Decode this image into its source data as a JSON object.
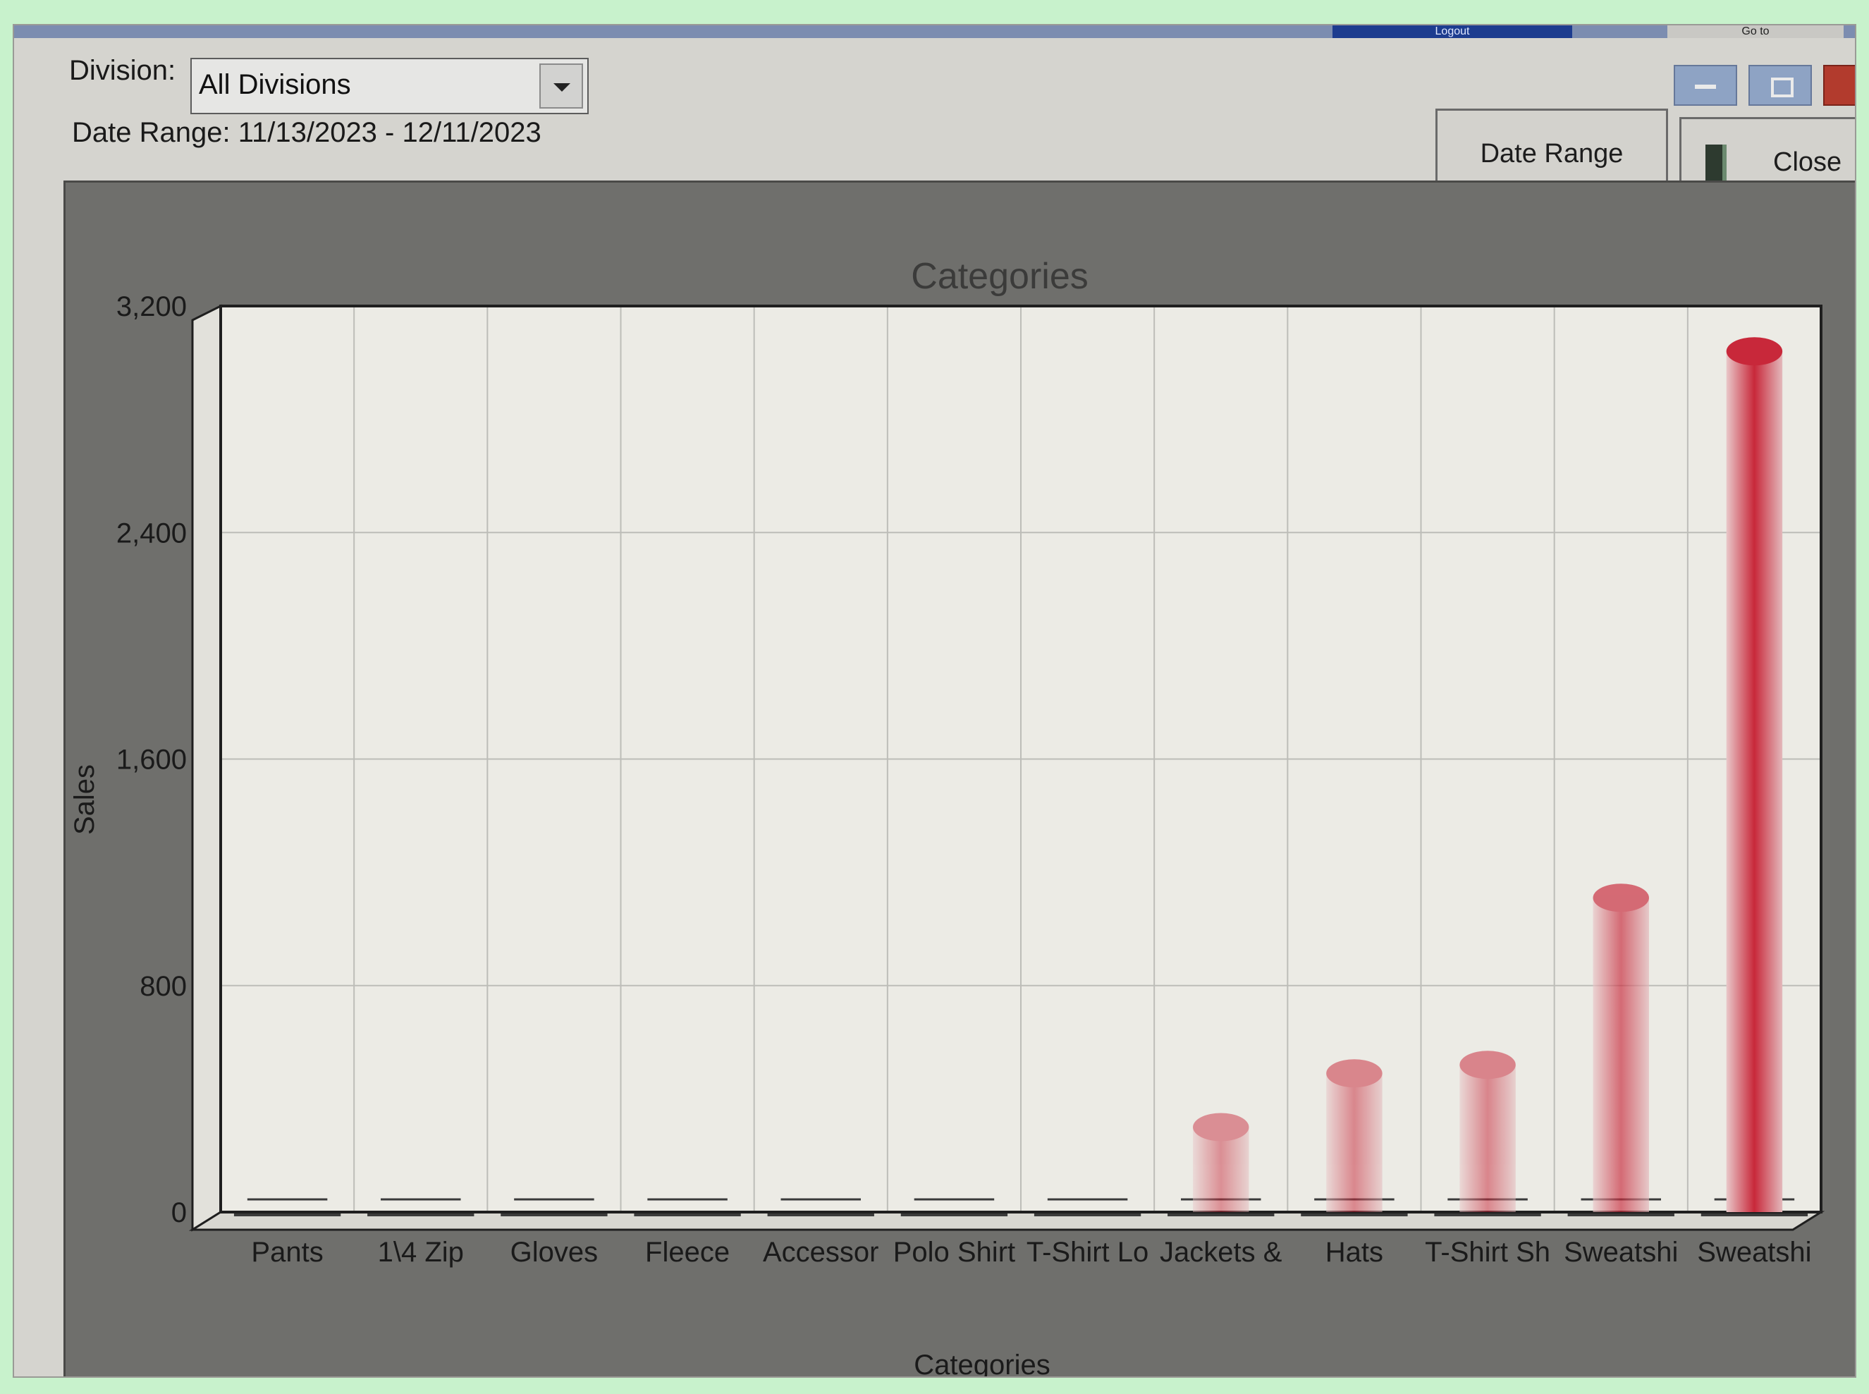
{
  "window": {
    "top_tabs": {
      "logout": "Logout",
      "goto": "Go to"
    },
    "division_label": "Division:",
    "division_value": "All Divisions",
    "date_range_text": "Date Range: 11/13/2023 - 12/11/2023",
    "buttons": {
      "date_range": "Date Range",
      "close": "Close"
    }
  },
  "chart_data": {
    "type": "bar",
    "title": "Categories",
    "xlabel": "Categories",
    "ylabel": "Sales",
    "ylim": [
      0,
      3200
    ],
    "yticks": [
      "0",
      "800",
      "1,600",
      "2,400",
      "3,200"
    ],
    "ytick_values": [
      0,
      800,
      1600,
      2400,
      3200
    ],
    "grid": true,
    "categories": [
      "Pants",
      "1\\4 Zip",
      "Gloves",
      "Fleece",
      "Accessor",
      "Polo Shirt",
      "T-Shirt Lo",
      "Jackets &",
      "Hats",
      "T-Shirt Sh",
      "Sweatshi",
      "Sweatshi"
    ],
    "values": [
      0,
      0,
      0,
      0,
      0,
      0,
      0,
      300,
      490,
      520,
      1110,
      3040
    ],
    "bar_color": "#c8283a"
  },
  "colors": {
    "plot_bg": "#ecebe5",
    "grid": "#bdbdb8",
    "frame": "#1f1f1f",
    "chart_bg": "#6f6f6c"
  }
}
